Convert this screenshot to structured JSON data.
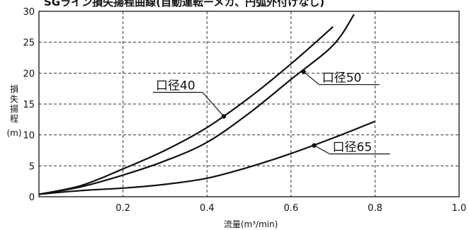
{
  "chart_data": {
    "type": "line",
    "title": "SGライン損失揚程曲線(自動運転ーメカ、円弧外付けなし)",
    "xlabel": "流量(m³/min)",
    "ylabel_chars": [
      "損",
      "失",
      "揚",
      "程"
    ],
    "ylabel_unit": "(m)",
    "xlim": [
      0,
      1.0
    ],
    "ylim": [
      0,
      30
    ],
    "x_ticks": [
      0.2,
      0.4,
      0.6,
      0.8,
      1.0
    ],
    "x_tick_labels": [
      "0.2",
      "0.4",
      "0.6",
      "0.8",
      "1.0"
    ],
    "y_ticks": [
      0,
      5,
      10,
      15,
      20,
      25,
      30
    ],
    "y_tick_labels": [
      "0",
      "5",
      "10",
      "15",
      "20",
      "25",
      "30"
    ],
    "grid": true,
    "series": [
      {
        "name": "口径40",
        "x": [
          0,
          0.1,
          0.2,
          0.3,
          0.4,
          0.5,
          0.6,
          0.7
        ],
        "y": [
          0.4,
          1.8,
          4.5,
          7.5,
          11.2,
          16.0,
          21.5,
          27.5
        ]
      },
      {
        "name": "口径50",
        "x": [
          0,
          0.1,
          0.2,
          0.3,
          0.4,
          0.5,
          0.6,
          0.7,
          0.75
        ],
        "y": [
          0.4,
          1.6,
          3.5,
          5.8,
          8.8,
          13.5,
          19.0,
          24.5,
          29.5
        ]
      },
      {
        "name": "口径65",
        "x": [
          0,
          0.1,
          0.2,
          0.3,
          0.4,
          0.5,
          0.6,
          0.7,
          0.8
        ],
        "y": [
          0.4,
          1.0,
          1.4,
          2.0,
          3.0,
          4.8,
          7.0,
          9.5,
          12.2
        ]
      }
    ],
    "callouts": [
      {
        "label": "口径40",
        "series": 0,
        "point_x": 0.44,
        "point_y": 13.0
      },
      {
        "label": "口径50",
        "series": 1,
        "point_x": 0.63,
        "point_y": 20.2
      },
      {
        "label": "口径65",
        "series": 2,
        "point_x": 0.655,
        "point_y": 8.3
      }
    ]
  }
}
